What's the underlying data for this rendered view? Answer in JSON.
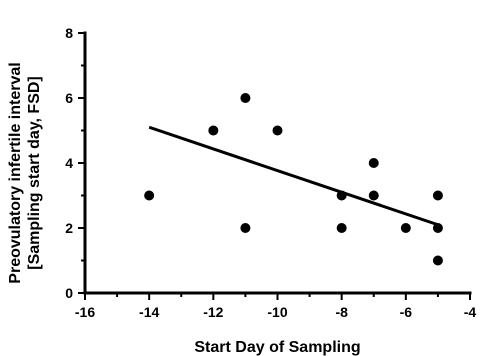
{
  "chart_data": {
    "type": "scatter",
    "title": "",
    "xlabel": "Start Day of Sampling",
    "ylabel": [
      "Preovulatory infertile interval",
      "[Sampling start day, FSD]"
    ],
    "xlim": [
      -16,
      -4
    ],
    "ylim": [
      0,
      8
    ],
    "xticks": [
      -16,
      -14,
      -12,
      -10,
      -8,
      -6,
      -4
    ],
    "yticks": [
      0,
      2,
      4,
      6,
      8
    ],
    "grid": false,
    "points": [
      {
        "x": -14,
        "y": 3
      },
      {
        "x": -12,
        "y": 5
      },
      {
        "x": -11,
        "y": 6
      },
      {
        "x": -11,
        "y": 2
      },
      {
        "x": -10,
        "y": 5
      },
      {
        "x": -8,
        "y": 3
      },
      {
        "x": -8,
        "y": 2
      },
      {
        "x": -7,
        "y": 4
      },
      {
        "x": -7,
        "y": 3
      },
      {
        "x": -6,
        "y": 2
      },
      {
        "x": -5,
        "y": 3
      },
      {
        "x": -5,
        "y": 2
      },
      {
        "x": -5,
        "y": 1
      }
    ],
    "trendline": {
      "x": [
        -14,
        -5
      ],
      "y": [
        5.1,
        2.1
      ]
    },
    "colors": {
      "marker": "#000000",
      "line": "#000000",
      "axis": "#000000"
    }
  }
}
